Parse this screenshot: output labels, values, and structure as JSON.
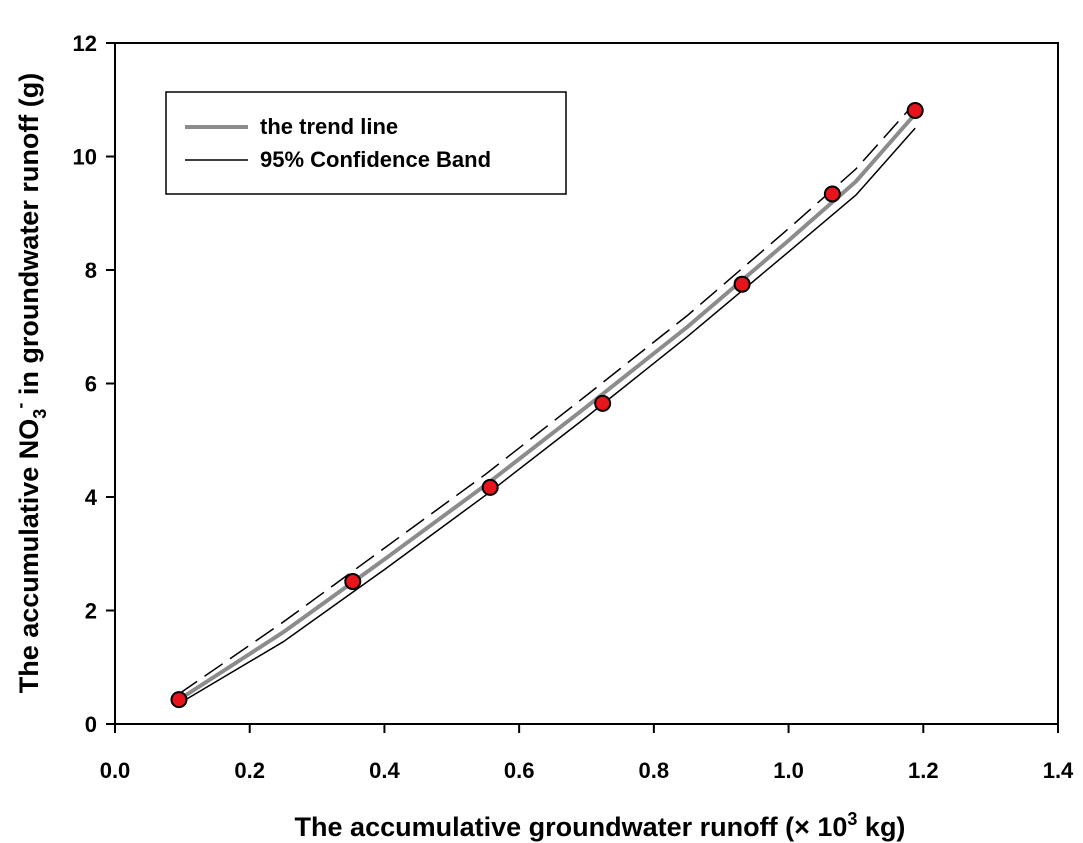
{
  "chart_data": {
    "type": "scatter",
    "xlabel": {
      "prefix": "The accumulative groundwater runoff (× 10",
      "sup": "3",
      "suffix": " kg)"
    },
    "ylabel": {
      "prefix": "The accumulative NO",
      "sub": "3",
      "sup": "-",
      "suffix": " in groundwater runoff (g)"
    },
    "xlim": [
      0.0,
      1.4
    ],
    "ylim": [
      0,
      12
    ],
    "x_ticks": [
      "0.0",
      "0.2",
      "0.4",
      "0.6",
      "0.8",
      "1.0",
      "1.2",
      "1.4"
    ],
    "y_ticks": [
      "0",
      "2",
      "4",
      "6",
      "8",
      "10",
      "12"
    ],
    "grid": false,
    "legend_position": "top-left",
    "colors": {
      "points": "#e8141b",
      "trend": "#8c8c8c",
      "band": "#000000"
    },
    "points": [
      {
        "x": 0.095,
        "y": 0.43
      },
      {
        "x": 0.353,
        "y": 2.51
      },
      {
        "x": 0.557,
        "y": 4.17
      },
      {
        "x": 0.724,
        "y": 5.65
      },
      {
        "x": 0.931,
        "y": 7.75
      },
      {
        "x": 1.065,
        "y": 9.34
      },
      {
        "x": 1.188,
        "y": 10.81
      }
    ],
    "series": [
      {
        "name": "the trend line",
        "style": "solid",
        "x": [
          0.095,
          0.25,
          0.4,
          0.55,
          0.7,
          0.85,
          1.0,
          1.1,
          1.188
        ],
        "y": [
          0.43,
          1.62,
          2.9,
          4.21,
          5.59,
          7.0,
          8.52,
          9.56,
          10.75
        ]
      },
      {
        "name": "95% Confidence Band",
        "style": "solid",
        "x": [
          0.095,
          0.25,
          0.4,
          0.55,
          0.7,
          0.85,
          1.0,
          1.1,
          1.188
        ],
        "y": [
          0.36,
          1.45,
          2.72,
          4.03,
          5.41,
          6.83,
          8.32,
          9.32,
          10.5
        ]
      },
      {
        "style": "dashed",
        "x": [
          0.095,
          0.25,
          0.4,
          0.55,
          0.7,
          0.85,
          1.0,
          1.1,
          1.188
        ],
        "y": [
          0.53,
          1.8,
          3.1,
          4.4,
          5.79,
          7.2,
          8.73,
          9.78,
          10.95
        ]
      }
    ]
  }
}
